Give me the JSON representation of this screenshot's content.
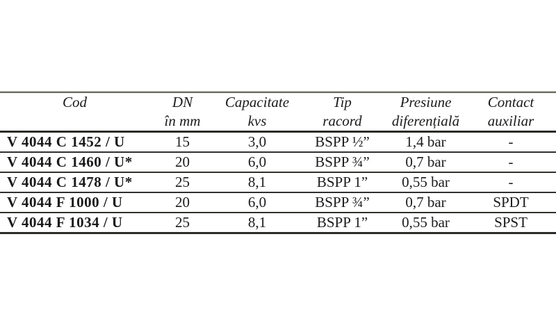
{
  "page": {
    "background": "#ffffff",
    "text_color": "#1b1b1b",
    "rule_color": "#2b2b28"
  },
  "table": {
    "headers": [
      {
        "line1": "Cod",
        "line2": ""
      },
      {
        "line1": "DN",
        "line2": "în mm"
      },
      {
        "line1": "Capacitate",
        "line2": "kvs"
      },
      {
        "line1": "Tip",
        "line2": "racord"
      },
      {
        "line1": "Presiune",
        "line2": "diferențială"
      },
      {
        "line1": "Contact",
        "line2": "auxiliar"
      }
    ],
    "rows": [
      {
        "cod": "V 4044 C 1452 / U",
        "dn": "15",
        "kvs": "3,0",
        "racord": "BSPP ½”",
        "presiune": "1,4 bar",
        "contact": "-"
      },
      {
        "cod": "V 4044 C 1460 / U*",
        "dn": "20",
        "kvs": "6,0",
        "racord": "BSPP ¾”",
        "presiune": "0,7 bar",
        "contact": "-"
      },
      {
        "cod": "V 4044 C 1478 / U*",
        "dn": "25",
        "kvs": "8,1",
        "racord": "BSPP 1”",
        "presiune": "0,55 bar",
        "contact": "-"
      },
      {
        "cod": "V 4044 F 1000 / U",
        "dn": "20",
        "kvs": "6,0",
        "racord": "BSPP ¾”",
        "presiune": "0,7 bar",
        "contact": "SPDT"
      },
      {
        "cod": "V 4044 F 1034 / U",
        "dn": "25",
        "kvs": "8,1",
        "racord": "BSPP 1”",
        "presiune": "0,55 bar",
        "contact": "SPST"
      }
    ]
  }
}
